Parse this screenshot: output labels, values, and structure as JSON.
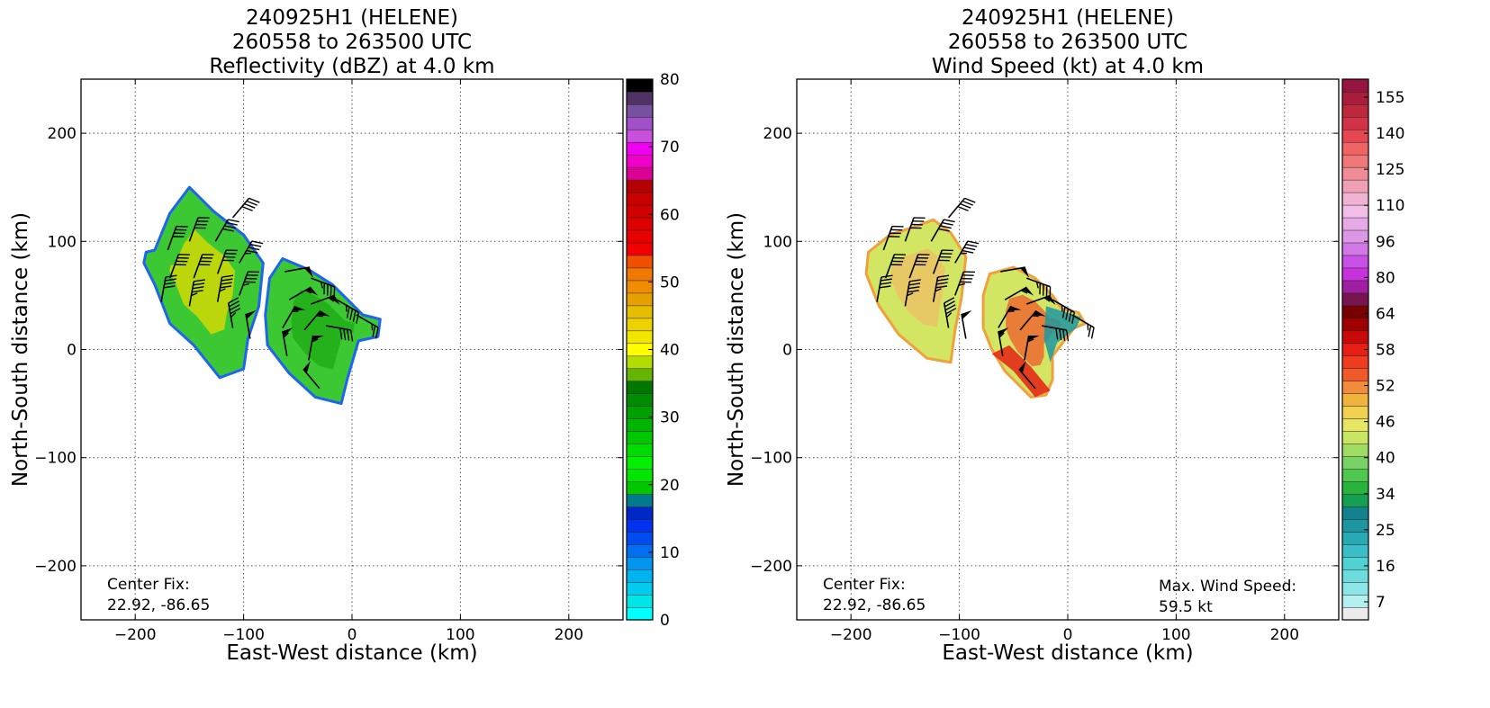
{
  "colors": {
    "refl_scale": [
      "#00ffff",
      "#00e6e6",
      "#00ccf0",
      "#00b4f0",
      "#0096f0",
      "#0070f0",
      "#004cf0",
      "#0032f0",
      "#0028c8",
      "#007a8c",
      "#00c800",
      "#00e600",
      "#00f000",
      "#00dc00",
      "#00c800",
      "#00b400",
      "#00a000",
      "#008c00",
      "#007800",
      "#64b400",
      "#b4dc00",
      "#ffff00",
      "#f0e600",
      "#ecd200",
      "#e6be00",
      "#e6a000",
      "#f08c00",
      "#f07800",
      "#f05000",
      "#f00000",
      "#e60000",
      "#dc0000",
      "#d20000",
      "#c80000",
      "#b40000",
      "#dc0096",
      "#f000c8",
      "#f000f0",
      "#c850dc",
      "#a050c8",
      "#7850a0",
      "#503264",
      "#000000"
    ],
    "wind_scale": [
      "#ececec",
      "#b4f0f0",
      "#8ce6e6",
      "#6edcdc",
      "#50d2d2",
      "#3cbec8",
      "#28aab4",
      "#1e96a0",
      "#14828c",
      "#14a050",
      "#28b43c",
      "#50c850",
      "#78d264",
      "#a0dc64",
      "#c8e664",
      "#e6e664",
      "#f0d250",
      "#f0b43c",
      "#f08c3c",
      "#f05a28",
      "#f03c1e",
      "#e61e14",
      "#c80a0a",
      "#a00000",
      "#780000",
      "#781450",
      "#a01ea0",
      "#c832dc",
      "#c850e6",
      "#d278e6",
      "#dc96e6",
      "#e6aae6",
      "#f0bee6",
      "#f0b4d2",
      "#f0a0b4",
      "#f08c96",
      "#f07878",
      "#f06464",
      "#e64650",
      "#d23246",
      "#be283c",
      "#aa1e3c",
      "#961440"
    ]
  },
  "chart_data": [
    {
      "type": "heatmap",
      "title": "240925H1 (HELENE)\n260558 to 263500 UTC\nReflectivity (dBZ) at 4.0 km",
      "title_lines": [
        "240925H1 (HELENE)",
        "260558 to 263500 UTC",
        "Reflectivity (dBZ) at 4.0 km"
      ],
      "xlabel": "East-West distance (km)",
      "ylabel": "North-South distance (km)",
      "xlim": [
        -250,
        250
      ],
      "ylim": [
        -250,
        250
      ],
      "xticks": [
        -200,
        -100,
        0,
        100,
        200
      ],
      "yticks": [
        -200,
        -100,
        0,
        100,
        200
      ],
      "xtick_labels": [
        "−200",
        "−100",
        "0",
        "100",
        "200"
      ],
      "ytick_labels": [
        "−200",
        "−100",
        "0",
        "100",
        "200"
      ],
      "grid": true,
      "colorbar": {
        "min": 0,
        "max": 80,
        "ticks": [
          0,
          10,
          20,
          30,
          40,
          50,
          60,
          70,
          80
        ],
        "unit": "dBZ"
      },
      "annotation_lines": [
        "Center Fix:",
        "22.92, -86.65"
      ],
      "swaths": [
        {
          "polygon": [
            [
              -182,
              92
            ],
            [
              -168,
              126
            ],
            [
              -150,
              150
            ],
            [
              -128,
              128
            ],
            [
              -100,
              106
            ],
            [
              -82,
              80
            ],
            [
              -86,
              40
            ],
            [
              -96,
              10
            ],
            [
              -100,
              -18
            ],
            [
              -122,
              -26
            ],
            [
              -146,
              4
            ],
            [
              -168,
              24
            ],
            [
              -182,
              60
            ],
            [
              -192,
              80
            ],
            [
              -190,
              90
            ]
          ],
          "level": 24
        },
        {
          "polygon": [
            [
              -64,
              84
            ],
            [
              -40,
              74
            ],
            [
              -18,
              60
            ],
            [
              -2,
              44
            ],
            [
              10,
              32
            ],
            [
              26,
              28
            ],
            [
              24,
              12
            ],
            [
              6,
              8
            ],
            [
              -4,
              -26
            ],
            [
              -10,
              -50
            ],
            [
              -34,
              -44
            ],
            [
              -58,
              -22
            ],
            [
              -78,
              4
            ],
            [
              -80,
              32
            ],
            [
              -76,
              66
            ]
          ],
          "level": 24
        }
      ],
      "wind_barbs": [
        {
          "x": -170,
          "y": 92,
          "speed": 40,
          "dir": 20
        },
        {
          "x": -150,
          "y": 100,
          "speed": 40,
          "dir": 20
        },
        {
          "x": -126,
          "y": 100,
          "speed": 40,
          "dir": 30
        },
        {
          "x": -110,
          "y": 122,
          "speed": 40,
          "dir": 40
        },
        {
          "x": -168,
          "y": 66,
          "speed": 40,
          "dir": 20
        },
        {
          "x": -146,
          "y": 66,
          "speed": 40,
          "dir": 20
        },
        {
          "x": -124,
          "y": 70,
          "speed": 40,
          "dir": 20
        },
        {
          "x": -104,
          "y": 80,
          "speed": 45,
          "dir": 30
        },
        {
          "x": -176,
          "y": 44,
          "speed": 40,
          "dir": 10
        },
        {
          "x": -150,
          "y": 40,
          "speed": 45,
          "dir": 10
        },
        {
          "x": -124,
          "y": 44,
          "speed": 45,
          "dir": 10
        },
        {
          "x": -104,
          "y": 50,
          "speed": 45,
          "dir": 20
        },
        {
          "x": -110,
          "y": 20,
          "speed": 45,
          "dir": 350
        },
        {
          "x": -94,
          "y": 10,
          "speed": 50,
          "dir": 350
        },
        {
          "x": -62,
          "y": 72,
          "speed": 50,
          "dir": 80
        },
        {
          "x": -38,
          "y": 66,
          "speed": 45,
          "dir": 110
        },
        {
          "x": -58,
          "y": 46,
          "speed": 55,
          "dir": 60
        },
        {
          "x": -38,
          "y": 42,
          "speed": 55,
          "dir": 70
        },
        {
          "x": -14,
          "y": 46,
          "speed": 45,
          "dir": 120
        },
        {
          "x": -64,
          "y": 20,
          "speed": 55,
          "dir": 30
        },
        {
          "x": -44,
          "y": 18,
          "speed": 55,
          "dir": 40
        },
        {
          "x": -24,
          "y": 22,
          "speed": 40,
          "dir": 100
        },
        {
          "x": 4,
          "y": 32,
          "speed": 25,
          "dir": 120
        },
        {
          "x": -60,
          "y": -6,
          "speed": 55,
          "dir": 350
        },
        {
          "x": -40,
          "y": -10,
          "speed": 55,
          "dir": 10
        },
        {
          "x": -30,
          "y": -36,
          "speed": 50,
          "dir": 320
        }
      ]
    },
    {
      "type": "heatmap",
      "title": "240925H1 (HELENE)\n260558 to 263500 UTC\nWind Speed (kt) at 4.0 km",
      "title_lines": [
        "240925H1 (HELENE)",
        "260558 to 263500 UTC",
        "Wind Speed (kt) at 4.0 km"
      ],
      "xlabel": "East-West distance (km)",
      "ylabel": "North-South distance (km)",
      "xlim": [
        -250,
        250
      ],
      "ylim": [
        -250,
        250
      ],
      "xticks": [
        -200,
        -100,
        0,
        100,
        200
      ],
      "yticks": [
        -200,
        -100,
        0,
        100,
        200
      ],
      "xtick_labels": [
        "−200",
        "−100",
        "0",
        "100",
        "200"
      ],
      "ytick_labels": [
        "−200",
        "−100",
        "0",
        "100",
        "200"
      ],
      "grid": true,
      "colorbar": {
        "ticks": [
          7,
          16,
          25,
          34,
          40,
          46,
          52,
          58,
          64,
          80,
          96,
          110,
          125,
          140,
          155
        ],
        "unit": "kt"
      },
      "annotation_lines": [
        "Center Fix:",
        "22.92, -86.65"
      ],
      "max_wind_lines": [
        "Max. Wind Speed:",
        "59.5 kt"
      ],
      "max_wind_speed_kt": 59.5,
      "swaths": [
        {
          "polygon": [
            [
              -184,
              90
            ],
            [
              -164,
              106
            ],
            [
              -140,
              114
            ],
            [
              -124,
              120
            ],
            [
              -108,
              108
            ],
            [
              -94,
              86
            ],
            [
              -98,
              48
            ],
            [
              -104,
              18
            ],
            [
              -108,
              -12
            ],
            [
              -130,
              -8
            ],
            [
              -156,
              14
            ],
            [
              -174,
              40
            ],
            [
              -186,
              70
            ]
          ],
          "level": 44
        },
        {
          "polygon": [
            [
              -72,
              70
            ],
            [
              -50,
              76
            ],
            [
              -30,
              66
            ],
            [
              -14,
              50
            ],
            [
              -6,
              38
            ],
            [
              10,
              34
            ],
            [
              16,
              24
            ],
            [
              6,
              20
            ],
            [
              -14,
              -6
            ],
            [
              -14,
              -28
            ],
            [
              -20,
              -42
            ],
            [
              -34,
              -44
            ],
            [
              -58,
              -20
            ],
            [
              -70,
              0
            ],
            [
              -78,
              20
            ],
            [
              -78,
              50
            ]
          ],
          "level": 48
        }
      ],
      "wind_barbs": [
        {
          "x": -170,
          "y": 92,
          "speed": 40,
          "dir": 20
        },
        {
          "x": -150,
          "y": 100,
          "speed": 40,
          "dir": 20
        },
        {
          "x": -126,
          "y": 100,
          "speed": 40,
          "dir": 30
        },
        {
          "x": -110,
          "y": 122,
          "speed": 40,
          "dir": 40
        },
        {
          "x": -168,
          "y": 66,
          "speed": 40,
          "dir": 20
        },
        {
          "x": -146,
          "y": 66,
          "speed": 40,
          "dir": 20
        },
        {
          "x": -124,
          "y": 70,
          "speed": 40,
          "dir": 20
        },
        {
          "x": -104,
          "y": 80,
          "speed": 45,
          "dir": 30
        },
        {
          "x": -176,
          "y": 44,
          "speed": 40,
          "dir": 10
        },
        {
          "x": -150,
          "y": 40,
          "speed": 45,
          "dir": 10
        },
        {
          "x": -124,
          "y": 44,
          "speed": 45,
          "dir": 10
        },
        {
          "x": -104,
          "y": 50,
          "speed": 45,
          "dir": 20
        },
        {
          "x": -110,
          "y": 20,
          "speed": 45,
          "dir": 350
        },
        {
          "x": -94,
          "y": 10,
          "speed": 50,
          "dir": 350
        },
        {
          "x": -62,
          "y": 72,
          "speed": 50,
          "dir": 80
        },
        {
          "x": -38,
          "y": 66,
          "speed": 45,
          "dir": 110
        },
        {
          "x": -58,
          "y": 46,
          "speed": 55,
          "dir": 60
        },
        {
          "x": -38,
          "y": 42,
          "speed": 55,
          "dir": 70
        },
        {
          "x": -14,
          "y": 46,
          "speed": 45,
          "dir": 120
        },
        {
          "x": -64,
          "y": 20,
          "speed": 55,
          "dir": 30
        },
        {
          "x": -44,
          "y": 18,
          "speed": 55,
          "dir": 40
        },
        {
          "x": -24,
          "y": 22,
          "speed": 40,
          "dir": 100
        },
        {
          "x": 4,
          "y": 32,
          "speed": 25,
          "dir": 120
        },
        {
          "x": -60,
          "y": -6,
          "speed": 55,
          "dir": 350
        },
        {
          "x": -40,
          "y": -10,
          "speed": 55,
          "dir": 10
        },
        {
          "x": -30,
          "y": -36,
          "speed": 50,
          "dir": 320
        }
      ]
    }
  ]
}
